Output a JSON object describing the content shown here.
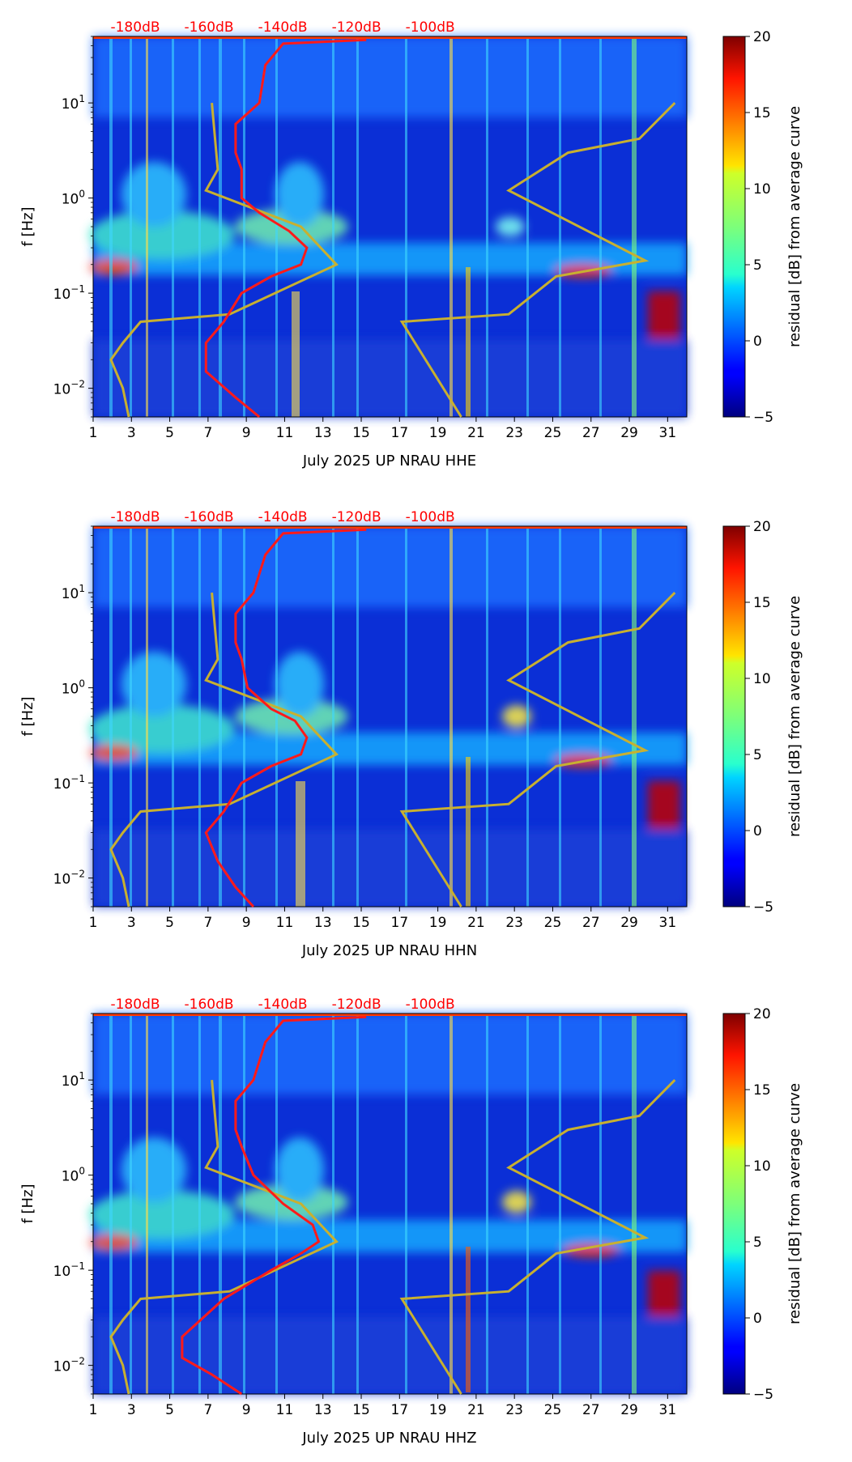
{
  "chart_data": [
    {
      "type": "heatmap",
      "xlabel": "July 2025 UP NRAU  HHE",
      "ylabel": "f [Hz]",
      "x_ticks": [
        "1",
        "3",
        "5",
        "7",
        "9",
        "11",
        "13",
        "15",
        "17",
        "19",
        "21",
        "23",
        "25",
        "27",
        "29",
        "31"
      ],
      "x_range": [
        1,
        32
      ],
      "y_range": [
        0.005,
        50
      ],
      "y_scale": "log",
      "y_ticks": [
        {
          "base": "10",
          "exp": "1"
        },
        {
          "base": "10",
          "exp": "0"
        },
        {
          "base": "10",
          "exp": "−1"
        },
        {
          "base": "10",
          "exp": "−2"
        }
      ],
      "top_ticks": [
        "-180dB",
        "-160dB",
        "-140dB",
        "-120dB",
        "-100dB"
      ],
      "colorbar": {
        "label": "residual [dB] from average curve",
        "ticks": [
          "20",
          "15",
          "10",
          "5",
          "0",
          "−5"
        ],
        "range": [
          -5,
          20
        ],
        "colormap": "jet"
      },
      "red_curve": [
        [
          46,
          46
        ],
        [
          32,
          42
        ],
        [
          29,
          25
        ],
        [
          28,
          10
        ],
        [
          24,
          6
        ],
        [
          24,
          3
        ],
        [
          25,
          2
        ],
        [
          25,
          1
        ],
        [
          28,
          0.7
        ],
        [
          33,
          0.45
        ],
        [
          36,
          0.3
        ],
        [
          35,
          0.2
        ],
        [
          30,
          0.15
        ],
        [
          25,
          0.1
        ],
        [
          22,
          0.05
        ],
        [
          19,
          0.03
        ],
        [
          19,
          0.015
        ],
        [
          24,
          0.008
        ],
        [
          28,
          0.005
        ]
      ],
      "yellow_curve": [
        [
          20,
          10
        ],
        [
          21,
          2
        ],
        [
          19,
          1.2
        ],
        [
          35,
          0.5
        ],
        [
          41,
          0.2
        ],
        [
          23,
          0.06
        ],
        [
          8,
          0.05
        ],
        [
          5,
          0.03
        ],
        [
          3,
          0.02
        ],
        [
          5,
          0.01
        ],
        [
          6,
          0.005
        ]
      ],
      "yellow_curve_right": [
        [
          98,
          10
        ],
        [
          92,
          4.2
        ],
        [
          80,
          3
        ],
        [
          70,
          1.2
        ],
        [
          93,
          0.22
        ],
        [
          78,
          0.15
        ],
        [
          70,
          0.06
        ],
        [
          52,
          0.05
        ],
        [
          62,
          0.005
        ]
      ]
    },
    {
      "type": "heatmap",
      "xlabel": "July 2025 UP NRAU  HHN",
      "ylabel": "f [Hz]",
      "x_ticks": [
        "1",
        "3",
        "5",
        "7",
        "9",
        "11",
        "13",
        "15",
        "17",
        "19",
        "21",
        "23",
        "25",
        "27",
        "29",
        "31"
      ],
      "x_range": [
        1,
        32
      ],
      "y_range": [
        0.005,
        50
      ],
      "y_scale": "log",
      "y_ticks": [
        {
          "base": "10",
          "exp": "1"
        },
        {
          "base": "10",
          "exp": "0"
        },
        {
          "base": "10",
          "exp": "−1"
        },
        {
          "base": "10",
          "exp": "−2"
        }
      ],
      "top_ticks": [
        "-180dB",
        "-160dB",
        "-140dB",
        "-120dB",
        "-100dB"
      ],
      "colorbar": {
        "label": "residual [dB] from average curve",
        "ticks": [
          "20",
          "15",
          "10",
          "5",
          "0",
          "−5"
        ],
        "range": [
          -5,
          20
        ],
        "colormap": "jet"
      },
      "red_curve": [
        [
          46,
          46
        ],
        [
          32,
          42
        ],
        [
          29,
          25
        ],
        [
          27,
          10
        ],
        [
          24,
          6
        ],
        [
          24,
          3
        ],
        [
          25,
          2
        ],
        [
          26,
          1
        ],
        [
          30,
          0.6
        ],
        [
          34,
          0.45
        ],
        [
          36,
          0.3
        ],
        [
          35,
          0.2
        ],
        [
          30,
          0.15
        ],
        [
          25,
          0.1
        ],
        [
          22,
          0.05
        ],
        [
          19,
          0.03
        ],
        [
          21,
          0.015
        ],
        [
          24,
          0.008
        ],
        [
          27,
          0.005
        ]
      ],
      "yellow_curve": [
        [
          20,
          10
        ],
        [
          21,
          2
        ],
        [
          19,
          1.2
        ],
        [
          35,
          0.5
        ],
        [
          41,
          0.2
        ],
        [
          23,
          0.06
        ],
        [
          8,
          0.05
        ],
        [
          5,
          0.03
        ],
        [
          3,
          0.02
        ],
        [
          5,
          0.01
        ],
        [
          6,
          0.005
        ]
      ],
      "yellow_curve_right": [
        [
          98,
          10
        ],
        [
          92,
          4.2
        ],
        [
          80,
          3
        ],
        [
          70,
          1.2
        ],
        [
          93,
          0.22
        ],
        [
          78,
          0.15
        ],
        [
          70,
          0.06
        ],
        [
          52,
          0.05
        ],
        [
          62,
          0.005
        ]
      ]
    },
    {
      "type": "heatmap",
      "xlabel": "July 2025 UP NRAU  HHZ",
      "ylabel": "f [Hz]",
      "x_ticks": [
        "1",
        "3",
        "5",
        "7",
        "9",
        "11",
        "13",
        "15",
        "17",
        "19",
        "21",
        "23",
        "25",
        "27",
        "29",
        "31"
      ],
      "x_range": [
        1,
        32
      ],
      "y_range": [
        0.005,
        50
      ],
      "y_scale": "log",
      "y_ticks": [
        {
          "base": "10",
          "exp": "1"
        },
        {
          "base": "10",
          "exp": "0"
        },
        {
          "base": "10",
          "exp": "−1"
        },
        {
          "base": "10",
          "exp": "−2"
        }
      ],
      "top_ticks": [
        "-180dB",
        "-160dB",
        "-140dB",
        "-120dB",
        "-100dB"
      ],
      "colorbar": {
        "label": "residual [dB] from average curve",
        "ticks": [
          "20",
          "15",
          "10",
          "5",
          "0",
          "−5"
        ],
        "range": [
          -5,
          20
        ],
        "colormap": "jet"
      },
      "red_curve": [
        [
          46,
          46
        ],
        [
          32,
          42
        ],
        [
          29,
          25
        ],
        [
          27,
          10
        ],
        [
          24,
          6
        ],
        [
          24,
          3
        ],
        [
          25,
          2
        ],
        [
          27,
          1
        ],
        [
          32,
          0.5
        ],
        [
          37,
          0.3
        ],
        [
          38,
          0.2
        ],
        [
          35,
          0.15
        ],
        [
          30,
          0.1
        ],
        [
          22,
          0.05
        ],
        [
          15,
          0.02
        ],
        [
          15,
          0.012
        ],
        [
          20,
          0.008
        ],
        [
          25,
          0.005
        ]
      ],
      "yellow_curve": [
        [
          20,
          10
        ],
        [
          21,
          2
        ],
        [
          19,
          1.2
        ],
        [
          35,
          0.5
        ],
        [
          41,
          0.2
        ],
        [
          23,
          0.06
        ],
        [
          8,
          0.05
        ],
        [
          5,
          0.03
        ],
        [
          3,
          0.02
        ],
        [
          5,
          0.01
        ],
        [
          6,
          0.005
        ]
      ],
      "yellow_curve_right": [
        [
          98,
          10
        ],
        [
          92,
          4.2
        ],
        [
          80,
          3
        ],
        [
          70,
          1.2
        ],
        [
          93,
          0.22
        ],
        [
          78,
          0.15
        ],
        [
          70,
          0.06
        ],
        [
          52,
          0.05
        ],
        [
          62,
          0.005
        ]
      ]
    }
  ]
}
